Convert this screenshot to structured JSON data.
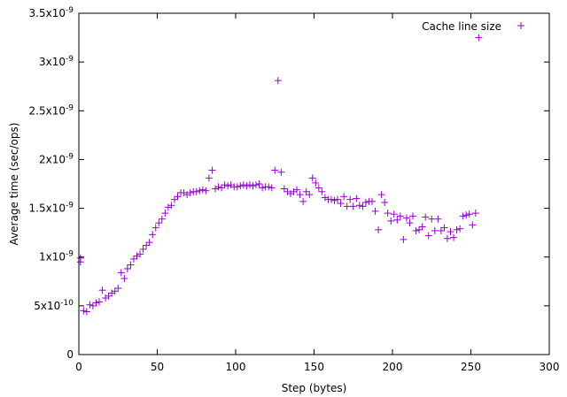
{
  "chart_data": {
    "type": "scatter",
    "title": "",
    "xlabel": "Step (bytes)",
    "ylabel": "Average time (sec/ops)",
    "xlim": [
      0,
      300
    ],
    "ylim": [
      0,
      3.5e-09
    ],
    "x_ticks": [
      0,
      50,
      100,
      150,
      200,
      250,
      300
    ],
    "x_tick_labels": [
      "0",
      "50",
      "100",
      "150",
      "200",
      "250",
      "300"
    ],
    "y_ticks": [
      0,
      5e-10,
      1e-09,
      1.5e-09,
      2e-09,
      2.5e-09,
      3e-09,
      3.5e-09
    ],
    "y_tick_labels": [
      {
        "mant": "0",
        "exp": ""
      },
      {
        "mant": "5x10",
        "exp": "-10"
      },
      {
        "mant": "1x10",
        "exp": "-9"
      },
      {
        "mant": "1.5x10",
        "exp": "-9"
      },
      {
        "mant": "2x10",
        "exp": "-9"
      },
      {
        "mant": "2.5x10",
        "exp": "-9"
      },
      {
        "mant": "3x10",
        "exp": "-9"
      },
      {
        "mant": "3.5x10",
        "exp": "-9"
      }
    ],
    "grid": false,
    "legend_position": "top-right",
    "marker_color": "#9400d3",
    "series": [
      {
        "name": "Cache line size",
        "points": [
          [
            1,
            9.5e-10
          ],
          [
            1,
            9.9e-10
          ],
          [
            3,
            4.5e-10
          ],
          [
            5,
            4.4e-10
          ],
          [
            7,
            5.1e-10
          ],
          [
            9,
            5e-10
          ],
          [
            11,
            5.3e-10
          ],
          [
            13,
            5.4e-10
          ],
          [
            15,
            6.6e-10
          ],
          [
            17,
            5.8e-10
          ],
          [
            19,
            6e-10
          ],
          [
            21,
            6.3e-10
          ],
          [
            23,
            6.5e-10
          ],
          [
            25,
            6.8e-10
          ],
          [
            27,
            8.4e-10
          ],
          [
            29,
            7.8e-10
          ],
          [
            31,
            8.8e-10
          ],
          [
            33,
            9.2e-10
          ],
          [
            35,
            9.8e-10
          ],
          [
            37,
            1.01e-09
          ],
          [
            39,
            1.03e-09
          ],
          [
            41,
            1.08e-09
          ],
          [
            43,
            1.12e-09
          ],
          [
            45,
            1.15e-09
          ],
          [
            47,
            1.23e-09
          ],
          [
            49,
            1.3e-09
          ],
          [
            51,
            1.35e-09
          ],
          [
            53,
            1.39e-09
          ],
          [
            55,
            1.45e-09
          ],
          [
            57,
            1.51e-09
          ],
          [
            59,
            1.53e-09
          ],
          [
            61,
            1.59e-09
          ],
          [
            63,
            1.62e-09
          ],
          [
            65,
            1.66e-09
          ],
          [
            67,
            1.66e-09
          ],
          [
            69,
            1.64e-09
          ],
          [
            71,
            1.66e-09
          ],
          [
            73,
            1.67e-09
          ],
          [
            75,
            1.67e-09
          ],
          [
            77,
            1.68e-09
          ],
          [
            79,
            1.69e-09
          ],
          [
            81,
            1.68e-09
          ],
          [
            83,
            1.81e-09
          ],
          [
            85,
            1.89e-09
          ],
          [
            87,
            1.7e-09
          ],
          [
            89,
            1.72e-09
          ],
          [
            91,
            1.71e-09
          ],
          [
            93,
            1.74e-09
          ],
          [
            95,
            1.73e-09
          ],
          [
            97,
            1.74e-09
          ],
          [
            99,
            1.72e-09
          ],
          [
            101,
            1.72e-09
          ],
          [
            103,
            1.73e-09
          ],
          [
            105,
            1.74e-09
          ],
          [
            107,
            1.73e-09
          ],
          [
            109,
            1.74e-09
          ],
          [
            111,
            1.73e-09
          ],
          [
            113,
            1.74e-09
          ],
          [
            115,
            1.75e-09
          ],
          [
            117,
            1.71e-09
          ],
          [
            119,
            1.72e-09
          ],
          [
            121,
            1.72e-09
          ],
          [
            123,
            1.71e-09
          ],
          [
            125,
            1.89e-09
          ],
          [
            127,
            2.81e-09
          ],
          [
            129,
            1.87e-09
          ],
          [
            131,
            1.7e-09
          ],
          [
            133,
            1.67e-09
          ],
          [
            135,
            1.65e-09
          ],
          [
            137,
            1.67e-09
          ],
          [
            139,
            1.69e-09
          ],
          [
            141,
            1.64e-09
          ],
          [
            143,
            1.57e-09
          ],
          [
            145,
            1.67e-09
          ],
          [
            147,
            1.64e-09
          ],
          [
            149,
            1.81e-09
          ],
          [
            151,
            1.76e-09
          ],
          [
            153,
            1.71e-09
          ],
          [
            155,
            1.67e-09
          ],
          [
            157,
            1.61e-09
          ],
          [
            159,
            1.59e-09
          ],
          [
            161,
            1.59e-09
          ],
          [
            163,
            1.58e-09
          ],
          [
            165,
            1.59e-09
          ],
          [
            167,
            1.55e-09
          ],
          [
            169,
            1.62e-09
          ],
          [
            171,
            1.52e-09
          ],
          [
            173,
            1.59e-09
          ],
          [
            175,
            1.52e-09
          ],
          [
            177,
            1.6e-09
          ],
          [
            179,
            1.53e-09
          ],
          [
            181,
            1.52e-09
          ],
          [
            183,
            1.56e-09
          ],
          [
            185,
            1.57e-09
          ],
          [
            187,
            1.57e-09
          ],
          [
            189,
            1.47e-09
          ],
          [
            191,
            1.28e-09
          ],
          [
            193,
            1.64e-09
          ],
          [
            195,
            1.56e-09
          ],
          [
            197,
            1.45e-09
          ],
          [
            199,
            1.37e-09
          ],
          [
            201,
            1.44e-09
          ],
          [
            203,
            1.38e-09
          ],
          [
            205,
            1.42e-09
          ],
          [
            207,
            1.18e-09
          ],
          [
            209,
            1.4e-09
          ],
          [
            211,
            1.35e-09
          ],
          [
            213,
            1.42e-09
          ],
          [
            215,
            1.27e-09
          ],
          [
            217,
            1.28e-09
          ],
          [
            219,
            1.31e-09
          ],
          [
            221,
            1.41e-09
          ],
          [
            223,
            1.22e-09
          ],
          [
            225,
            1.39e-09
          ],
          [
            227,
            1.27e-09
          ],
          [
            229,
            1.39e-09
          ],
          [
            231,
            1.27e-09
          ],
          [
            233,
            1.3e-09
          ],
          [
            235,
            1.19e-09
          ],
          [
            237,
            1.26e-09
          ],
          [
            239,
            1.2e-09
          ],
          [
            241,
            1.28e-09
          ],
          [
            243,
            1.29e-09
          ],
          [
            245,
            1.42e-09
          ],
          [
            247,
            1.43e-09
          ],
          [
            249,
            1.44e-09
          ],
          [
            251,
            1.33e-09
          ],
          [
            253,
            1.45e-09
          ],
          [
            255,
            3.25e-09
          ]
        ]
      }
    ]
  }
}
